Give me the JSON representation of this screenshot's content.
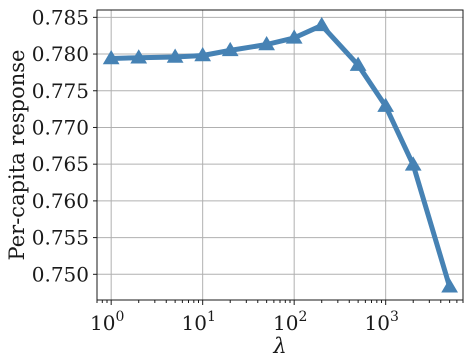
{
  "chart_data": {
    "type": "line",
    "title": "",
    "xlabel": "λ",
    "ylabel": "Per-capita response",
    "xscale": "log",
    "xlim": [
      0.7,
      7000
    ],
    "ylim": [
      0.7465,
      0.786
    ],
    "grid": true,
    "x_ticks": [
      {
        "value": 1,
        "base": "10",
        "exp": "0"
      },
      {
        "value": 10,
        "base": "10",
        "exp": "1"
      },
      {
        "value": 100,
        "base": "10",
        "exp": "2"
      },
      {
        "value": 1000,
        "base": "10",
        "exp": "3"
      }
    ],
    "y_ticks": [
      {
        "value": 0.75,
        "label": "0.750"
      },
      {
        "value": 0.755,
        "label": "0.755"
      },
      {
        "value": 0.76,
        "label": "0.760"
      },
      {
        "value": 0.765,
        "label": "0.765"
      },
      {
        "value": 0.77,
        "label": "0.770"
      },
      {
        "value": 0.775,
        "label": "0.775"
      },
      {
        "value": 0.78,
        "label": "0.780"
      },
      {
        "value": 0.785,
        "label": "0.785"
      }
    ],
    "series": [
      {
        "color": "#4682b4",
        "marker": "triangle",
        "x": [
          1,
          2,
          5,
          10,
          20,
          50,
          100,
          200,
          500,
          1000,
          2000,
          5000
        ],
        "y": [
          0.7794,
          0.7795,
          0.7796,
          0.7798,
          0.7805,
          0.7813,
          0.7822,
          0.7839,
          0.7785,
          0.7729,
          0.7649,
          0.7483
        ]
      }
    ]
  }
}
